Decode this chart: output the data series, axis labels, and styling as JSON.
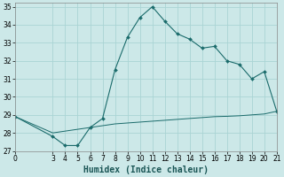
{
  "xlabel": "Humidex (Indice chaleur)",
  "bg_color": "#cce8e8",
  "grid_color": "#aad4d4",
  "line_color": "#1a6b6b",
  "x_main": [
    0,
    3,
    4,
    5,
    6,
    7,
    8,
    9,
    10,
    11,
    12,
    13,
    14,
    15,
    16,
    17,
    18,
    19,
    20,
    21
  ],
  "y_main": [
    28.9,
    27.8,
    27.3,
    27.3,
    28.3,
    28.8,
    31.5,
    33.3,
    34.4,
    35.0,
    34.2,
    33.5,
    33.2,
    32.7,
    32.8,
    32.0,
    31.8,
    31.0,
    31.4,
    29.2
  ],
  "x_base": [
    0,
    3,
    4,
    5,
    6,
    7,
    8,
    9,
    10,
    11,
    12,
    13,
    14,
    15,
    16,
    17,
    18,
    19,
    20,
    21
  ],
  "y_base": [
    28.9,
    28.0,
    28.1,
    28.2,
    28.3,
    28.4,
    28.5,
    28.55,
    28.6,
    28.65,
    28.7,
    28.75,
    28.8,
    28.85,
    28.9,
    28.92,
    28.95,
    29.0,
    29.05,
    29.2
  ],
  "xlim": [
    0,
    21
  ],
  "ylim": [
    27,
    35.2
  ],
  "xticks": [
    0,
    3,
    4,
    5,
    6,
    7,
    8,
    9,
    10,
    11,
    12,
    13,
    14,
    15,
    16,
    17,
    18,
    19,
    20,
    21
  ],
  "yticks": [
    27,
    28,
    29,
    30,
    31,
    32,
    33,
    34,
    35
  ],
  "tick_fontsize": 5.5,
  "label_fontsize": 7.0
}
